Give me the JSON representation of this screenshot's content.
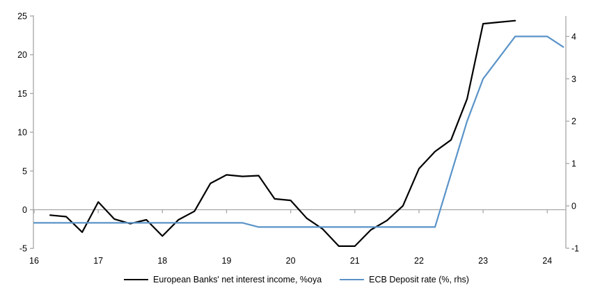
{
  "chart_data": {
    "type": "line",
    "title": "",
    "x_axis": {
      "ticks": [
        16,
        17,
        18,
        19,
        20,
        21,
        22,
        23,
        24
      ],
      "range": [
        16,
        24.3
      ]
    },
    "left_axis": {
      "ticks": [
        25,
        20,
        15,
        10,
        5,
        0,
        -5
      ],
      "range": [
        -5,
        25
      ]
    },
    "right_axis": {
      "ticks": [
        4,
        3,
        2,
        1,
        0,
        -1
      ],
      "range": [
        -1,
        4.5
      ]
    },
    "grid": "zero-line-only",
    "legend_position": "bottom",
    "axis_color": "#A6A6A6",
    "series": [
      {
        "name": "European Banks' net interest income, %oya",
        "axis": "left",
        "color": "#000000",
        "x": [
          16.25,
          16.5,
          16.75,
          17,
          17.25,
          17.5,
          17.75,
          18,
          18.25,
          18.5,
          18.75,
          19,
          19.25,
          19.5,
          19.75,
          20,
          20.25,
          20.5,
          20.75,
          21,
          21.25,
          21.5,
          21.75,
          22,
          22.25,
          22.5,
          22.75,
          23,
          23.25,
          23.5
        ],
        "values": [
          -0.7,
          -0.9,
          -2.9,
          1.0,
          -1.2,
          -1.8,
          -1.3,
          -3.4,
          -1.3,
          -0.2,
          3.4,
          4.5,
          4.3,
          4.4,
          1.4,
          1.2,
          -1.1,
          -2.5,
          -4.7,
          -4.7,
          -2.6,
          -1.4,
          0.5,
          5.3,
          7.5,
          9.0,
          14.3,
          24.0,
          24.2,
          24.4
        ]
      },
      {
        "name": "ECB Deposit rate (%, rhs)",
        "axis": "right",
        "color": "#5A93C8",
        "x": [
          16,
          16.25,
          16.5,
          16.75,
          17,
          17.25,
          17.5,
          17.75,
          18,
          18.25,
          18.5,
          18.75,
          19,
          19.25,
          19.5,
          19.75,
          20,
          20.25,
          20.5,
          20.75,
          21,
          21.25,
          21.5,
          21.75,
          22,
          22.25,
          22.5,
          22.75,
          23,
          23.25,
          23.5,
          23.75,
          24,
          24.25
        ],
        "values": [
          -0.4,
          -0.4,
          -0.4,
          -0.4,
          -0.4,
          -0.4,
          -0.4,
          -0.4,
          -0.4,
          -0.4,
          -0.4,
          -0.4,
          -0.4,
          -0.4,
          -0.5,
          -0.5,
          -0.5,
          -0.5,
          -0.5,
          -0.5,
          -0.5,
          -0.5,
          -0.5,
          -0.5,
          -0.5,
          -0.5,
          0.75,
          2.0,
          3.0,
          3.5,
          4.0,
          4.0,
          4.0,
          3.75
        ]
      }
    ]
  }
}
